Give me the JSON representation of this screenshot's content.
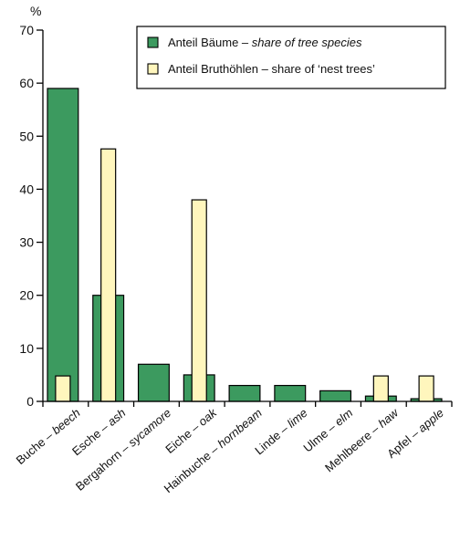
{
  "chart_data": {
    "type": "bar",
    "ylabel": "%",
    "ylim": [
      0,
      70
    ],
    "yticks": [
      0,
      10,
      20,
      30,
      40,
      50,
      60,
      70
    ],
    "categories": [
      {
        "de": "Buche",
        "en": "beech"
      },
      {
        "de": "Esche",
        "en": "ash"
      },
      {
        "de": "Bergahorn",
        "en": "sycamore"
      },
      {
        "de": "Eiche",
        "en": "oak"
      },
      {
        "de": "Hainbuche",
        "en": "hornbeam"
      },
      {
        "de": "Linde",
        "en": "lime"
      },
      {
        "de": "Ulme",
        "en": "elm"
      },
      {
        "de": "Mehlbeere",
        "en": "haw"
      },
      {
        "de": "Apfel",
        "en": "apple"
      }
    ],
    "series": [
      {
        "name_de": "Anteil Bäume",
        "name_en": "share of tree species",
        "color": "#3c9a5f",
        "values": [
          59,
          20,
          7,
          5,
          3,
          3,
          2,
          1,
          0.5
        ]
      },
      {
        "name_de": "Anteil Bruthöhlen",
        "name_en": "share of ‘nest trees’",
        "color": "#fff6bd",
        "values": [
          4.8,
          47.6,
          0,
          38,
          0,
          0,
          0,
          4.8,
          4.8
        ]
      }
    ],
    "legend_position": "top-right",
    "grid": false
  }
}
